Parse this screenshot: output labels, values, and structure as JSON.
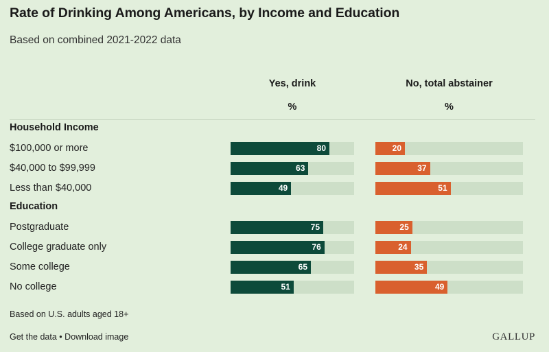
{
  "title": "Rate of Drinking Among Americans, by Income and Education",
  "subtitle": "Based on combined 2021-2022 data",
  "columns": {
    "yes": "Yes, drink",
    "no": "No, total abstainer",
    "unit": "%"
  },
  "colors": {
    "yes": "#0d4a3a",
    "no": "#d9602e",
    "track": "#cddfc8",
    "background": "#e2efdc"
  },
  "chart_data": {
    "type": "bar",
    "title": "Rate of Drinking Among Americans, by Income and Education",
    "subtitle": "Based on combined 2021-2022 data",
    "unit": "%",
    "xlim": [
      0,
      100
    ],
    "groups": [
      {
        "name": "Household Income",
        "categories": [
          "$100,000 or more",
          "$40,000 to $99,999",
          "Less than $40,000"
        ]
      },
      {
        "name": "Education",
        "categories": [
          "Postgraduate",
          "College graduate only",
          "Some college",
          "No college"
        ]
      }
    ],
    "categories": [
      "$100,000 or more",
      "$40,000 to $99,999",
      "Less than $40,000",
      "Postgraduate",
      "College graduate only",
      "Some college",
      "No college"
    ],
    "series": [
      {
        "name": "Yes, drink",
        "values": [
          80,
          63,
          49,
          75,
          76,
          65,
          51
        ]
      },
      {
        "name": "No, total abstainer",
        "values": [
          20,
          37,
          51,
          25,
          24,
          35,
          49
        ]
      }
    ]
  },
  "footnote": "Based on U.S. adults aged 18+",
  "links": {
    "get_data": "Get the data",
    "separator": "•",
    "download": "Download image"
  },
  "logo": "GALLUP"
}
